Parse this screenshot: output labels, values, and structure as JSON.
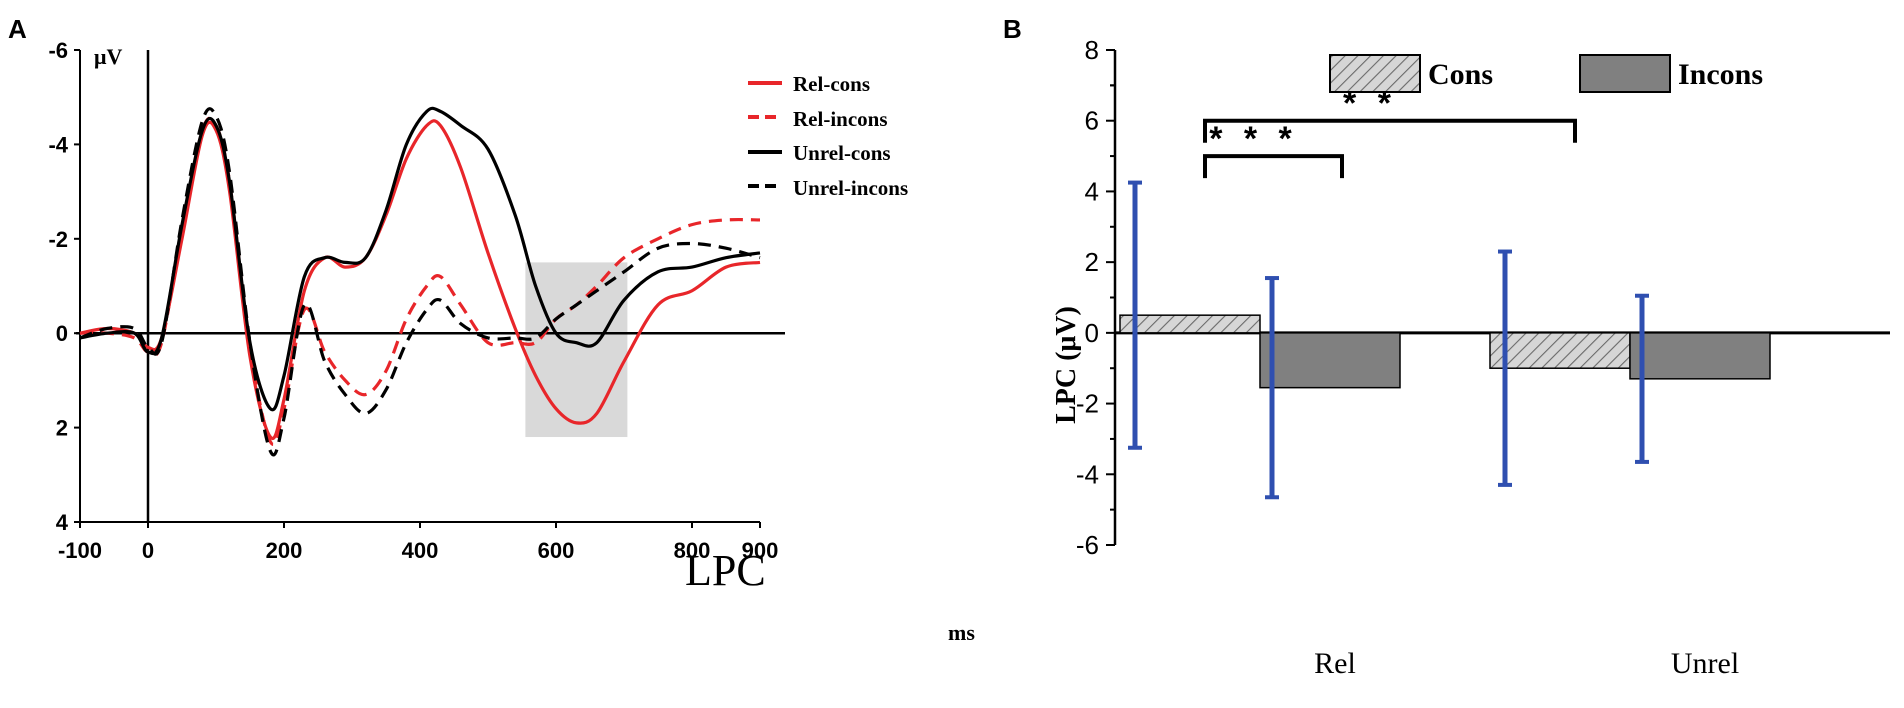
{
  "chart_data": [
    {
      "panel": "A",
      "type": "line",
      "y_unit": "μV",
      "x_unit": "ms",
      "xlim": [
        -100,
        900
      ],
      "ylim": [
        -6,
        4
      ],
      "y_inverted": true,
      "x_ticks": [
        -100,
        0,
        200,
        400,
        600,
        800,
        900
      ],
      "x_tick_labels": [
        "-100",
        "0",
        "200",
        "400",
        "600",
        "800",
        "900"
      ],
      "y_ticks": [
        -6,
        -4,
        -2,
        0,
        2,
        4
      ],
      "y_tick_labels": [
        "-6",
        "-4",
        "-2",
        "0",
        "2",
        "4"
      ],
      "shaded_window": {
        "x": [
          555,
          705
        ],
        "y": [
          -1.5,
          2.2
        ],
        "label": "LPC"
      },
      "series": [
        {
          "name": "Rel-cons",
          "color": "#e8262a",
          "dash": "solid",
          "x": [
            -100,
            -60,
            -20,
            0,
            20,
            50,
            80,
            100,
            120,
            150,
            180,
            200,
            230,
            260,
            290,
            320,
            350,
            380,
            410,
            430,
            460,
            500,
            540,
            570,
            600,
            630,
            660,
            700,
            750,
            800,
            850,
            900
          ],
          "y": [
            0,
            -0.1,
            0,
            0.3,
            0.1,
            -2.0,
            -4.2,
            -4.3,
            -3.0,
            0.5,
            2.2,
            1.4,
            -0.9,
            -1.6,
            -1.4,
            -1.6,
            -2.5,
            -3.7,
            -4.4,
            -4.4,
            -3.5,
            -1.7,
            -0.1,
            0.9,
            1.6,
            1.9,
            1.7,
            0.6,
            -0.6,
            -0.9,
            -1.4,
            -1.5
          ]
        },
        {
          "name": "Rel-incons",
          "color": "#e8262a",
          "dash": "dashed",
          "x": [
            -100,
            -60,
            -20,
            0,
            20,
            50,
            80,
            100,
            120,
            150,
            180,
            200,
            230,
            260,
            290,
            320,
            350,
            380,
            410,
            430,
            460,
            500,
            540,
            570,
            600,
            630,
            660,
            700,
            750,
            800,
            850,
            900
          ],
          "y": [
            0,
            0,
            0.1,
            0.4,
            0.2,
            -2.2,
            -4.3,
            -4.4,
            -3.2,
            0.3,
            2.3,
            1.6,
            -0.5,
            0.4,
            1.0,
            1.3,
            0.8,
            -0.3,
            -1.0,
            -1.2,
            -0.6,
            0.2,
            0.2,
            0.2,
            -0.3,
            -0.6,
            -1.0,
            -1.6,
            -2.0,
            -2.3,
            -2.4,
            -2.4
          ]
        },
        {
          "name": "Unrel-cons",
          "color": "#000000",
          "dash": "solid",
          "x": [
            -100,
            -60,
            -20,
            0,
            20,
            50,
            80,
            100,
            120,
            150,
            180,
            200,
            230,
            260,
            290,
            320,
            350,
            380,
            410,
            430,
            460,
            500,
            540,
            570,
            600,
            630,
            660,
            700,
            750,
            800,
            850,
            900
          ],
          "y": [
            0.1,
            0,
            0,
            0.4,
            0.1,
            -2.3,
            -4.3,
            -4.4,
            -3.2,
            0.2,
            1.6,
            0.9,
            -1.2,
            -1.6,
            -1.5,
            -1.6,
            -2.6,
            -4.0,
            -4.7,
            -4.7,
            -4.4,
            -3.9,
            -2.5,
            -1.0,
            0,
            0.2,
            0.2,
            -0.7,
            -1.3,
            -1.4,
            -1.6,
            -1.7
          ]
        },
        {
          "name": "Unrel-incons",
          "color": "#000000",
          "dash": "dashed",
          "x": [
            -100,
            -60,
            -20,
            0,
            20,
            50,
            80,
            100,
            120,
            150,
            180,
            200,
            230,
            260,
            290,
            320,
            350,
            380,
            410,
            430,
            460,
            500,
            540,
            570,
            600,
            630,
            660,
            700,
            750,
            800,
            850,
            900
          ],
          "y": [
            0.1,
            -0.1,
            -0.1,
            0.3,
            0.2,
            -2.4,
            -4.5,
            -4.6,
            -3.4,
            0.2,
            2.5,
            1.8,
            -0.6,
            0.6,
            1.3,
            1.7,
            1.2,
            0.2,
            -0.5,
            -0.7,
            -0.2,
            0.1,
            0.1,
            0.1,
            -0.3,
            -0.6,
            -0.9,
            -1.3,
            -1.8,
            -1.9,
            -1.8,
            -1.6
          ]
        }
      ]
    },
    {
      "panel": "B",
      "type": "bar",
      "ylabel": "LPC (μV)",
      "ylim": [
        -6,
        8
      ],
      "y_ticks": [
        -6,
        -4,
        -2,
        0,
        2,
        4,
        6,
        8
      ],
      "y_tick_labels": [
        "-6",
        "-4",
        "-2",
        "0",
        "2",
        "4",
        "6",
        "8"
      ],
      "categories": [
        "Rel",
        "Unrel"
      ],
      "series": [
        {
          "name": "Cons",
          "pattern": "hatched",
          "values": [
            0.5,
            -1.0
          ],
          "error": [
            3.75,
            3.3
          ]
        },
        {
          "name": "Incons",
          "pattern": "solid-gray",
          "values": [
            -1.55,
            -1.3
          ],
          "error": [
            3.1,
            2.35
          ]
        }
      ],
      "error_bar_color": "#2f4fb0",
      "significance": [
        {
          "label": "* * *",
          "from": "Rel-Cons",
          "to": "Rel-Incons",
          "y": 5.0
        },
        {
          "label": "* *",
          "from": "Rel-Cons",
          "to": "Unrel-Cons",
          "y": 6.0
        }
      ]
    }
  ]
}
